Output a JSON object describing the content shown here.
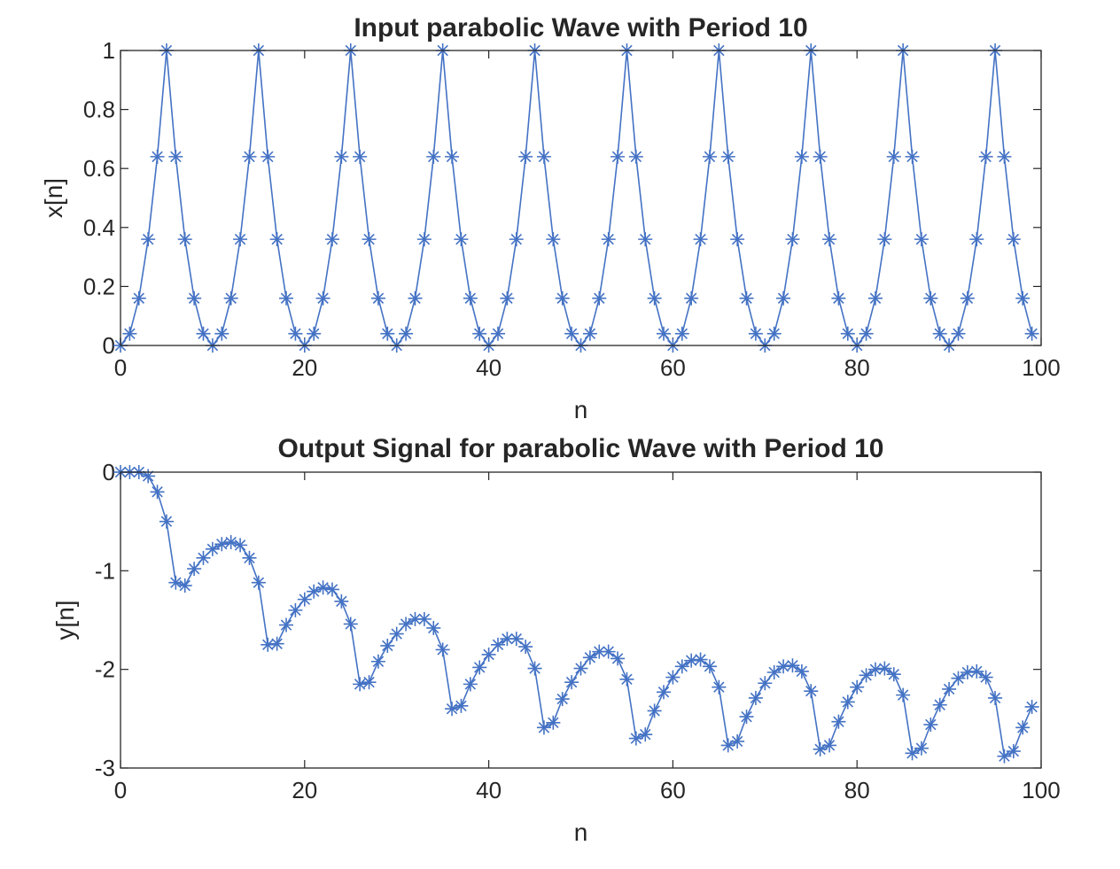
{
  "chart_data": [
    {
      "type": "line",
      "title": "Input parabolic Wave with Period 10",
      "xlabel": "n",
      "ylabel": "x[n]",
      "xlim": [
        0,
        100
      ],
      "ylim": [
        0,
        1
      ],
      "xticks": [
        0,
        20,
        40,
        60,
        80,
        100
      ],
      "yticks": [
        0,
        0.2,
        0.4,
        0.6,
        0.8,
        1
      ],
      "ytick_labels": [
        "0",
        "0.2",
        "0.4",
        "0.6",
        "0.8",
        "1"
      ],
      "marker": "asterisk",
      "color": "#4472C4",
      "grid": false,
      "x": [
        0,
        1,
        2,
        3,
        4,
        5,
        6,
        7,
        8,
        9,
        10,
        11,
        12,
        13,
        14,
        15,
        16,
        17,
        18,
        19,
        20,
        21,
        22,
        23,
        24,
        25,
        26,
        27,
        28,
        29,
        30,
        31,
        32,
        33,
        34,
        35,
        36,
        37,
        38,
        39,
        40,
        41,
        42,
        43,
        44,
        45,
        46,
        47,
        48,
        49,
        50,
        51,
        52,
        53,
        54,
        55,
        56,
        57,
        58,
        59,
        60,
        61,
        62,
        63,
        64,
        65,
        66,
        67,
        68,
        69,
        70,
        71,
        72,
        73,
        74,
        75,
        76,
        77,
        78,
        79,
        80,
        81,
        82,
        83,
        84,
        85,
        86,
        87,
        88,
        89,
        90,
        91,
        92,
        93,
        94,
        95,
        96,
        97,
        98,
        99
      ],
      "y": [
        0,
        0.04,
        0.16,
        0.36,
        0.64,
        1,
        0.64,
        0.36,
        0.16,
        0.04,
        0,
        0.04,
        0.16,
        0.36,
        0.64,
        1,
        0.64,
        0.36,
        0.16,
        0.04,
        0,
        0.04,
        0.16,
        0.36,
        0.64,
        1,
        0.64,
        0.36,
        0.16,
        0.04,
        0,
        0.04,
        0.16,
        0.36,
        0.64,
        1,
        0.64,
        0.36,
        0.16,
        0.04,
        0,
        0.04,
        0.16,
        0.36,
        0.64,
        1,
        0.64,
        0.36,
        0.16,
        0.04,
        0,
        0.04,
        0.16,
        0.36,
        0.64,
        1,
        0.64,
        0.36,
        0.16,
        0.04,
        0,
        0.04,
        0.16,
        0.36,
        0.64,
        1,
        0.64,
        0.36,
        0.16,
        0.04,
        0,
        0.04,
        0.16,
        0.36,
        0.64,
        1,
        0.64,
        0.36,
        0.16,
        0.04,
        0,
        0.04,
        0.16,
        0.36,
        0.64,
        1,
        0.64,
        0.36,
        0.16,
        0.04,
        0,
        0.04,
        0.16,
        0.36,
        0.64,
        1,
        0.64,
        0.36,
        0.16,
        0.04
      ]
    },
    {
      "type": "line",
      "title": "Output Signal for parabolic Wave with Period 10",
      "xlabel": "n",
      "ylabel": "y[n]",
      "xlim": [
        0,
        100
      ],
      "ylim": [
        -3,
        0
      ],
      "xticks": [
        0,
        20,
        40,
        60,
        80,
        100
      ],
      "yticks": [
        -3,
        -2,
        -1,
        0
      ],
      "ytick_labels": [
        "-3",
        "-2",
        "-1",
        "0"
      ],
      "marker": "asterisk",
      "color": "#4472C4",
      "grid": false,
      "x": [
        0,
        1,
        2,
        3,
        4,
        5,
        6,
        7,
        8,
        9,
        10,
        11,
        12,
        13,
        14,
        15,
        16,
        17,
        18,
        19,
        20,
        21,
        22,
        23,
        24,
        25,
        26,
        27,
        28,
        29,
        30,
        31,
        32,
        33,
        34,
        35,
        36,
        37,
        38,
        39,
        40,
        41,
        42,
        43,
        44,
        45,
        46,
        47,
        48,
        49,
        50,
        51,
        52,
        53,
        54,
        55,
        56,
        57,
        58,
        59,
        60,
        61,
        62,
        63,
        64,
        65,
        66,
        67,
        68,
        69,
        70,
        71,
        72,
        73,
        74,
        75,
        76,
        77,
        78,
        79,
        80,
        81,
        82,
        83,
        84,
        85,
        86,
        87,
        88,
        89,
        90,
        91,
        92,
        93,
        94,
        95,
        96,
        97,
        98,
        99
      ],
      "y": [
        0,
        0,
        0,
        -0.04,
        -0.2,
        -0.5,
        -1.12,
        -1.15,
        -0.98,
        -0.87,
        -0.78,
        -0.73,
        -0.71,
        -0.74,
        -0.87,
        -1.12,
        -1.75,
        -1.74,
        -1.55,
        -1.4,
        -1.29,
        -1.21,
        -1.17,
        -1.19,
        -1.31,
        -1.54,
        -2.15,
        -2.13,
        -1.92,
        -1.76,
        -1.64,
        -1.54,
        -1.49,
        -1.49,
        -1.58,
        -1.8,
        -2.4,
        -2.37,
        -2.15,
        -1.98,
        -1.85,
        -1.75,
        -1.69,
        -1.69,
        -1.77,
        -1.99,
        -2.59,
        -2.54,
        -2.3,
        -2.13,
        -1.99,
        -1.88,
        -1.82,
        -1.82,
        -1.89,
        -2.1,
        -2.7,
        -2.66,
        -2.42,
        -2.23,
        -2.08,
        -1.97,
        -1.91,
        -1.9,
        -1.97,
        -2.18,
        -2.77,
        -2.73,
        -2.48,
        -2.29,
        -2.14,
        -2.03,
        -1.97,
        -1.96,
        -2.02,
        -2.22,
        -2.81,
        -2.77,
        -2.53,
        -2.33,
        -2.18,
        -2.06,
        -2,
        -1.99,
        -2.05,
        -2.26,
        -2.85,
        -2.8,
        -2.56,
        -2.36,
        -2.2,
        -2.09,
        -2.03,
        -2.02,
        -2.08,
        -2.29,
        -2.88,
        -2.83,
        -2.59,
        -2.38
      ]
    }
  ]
}
